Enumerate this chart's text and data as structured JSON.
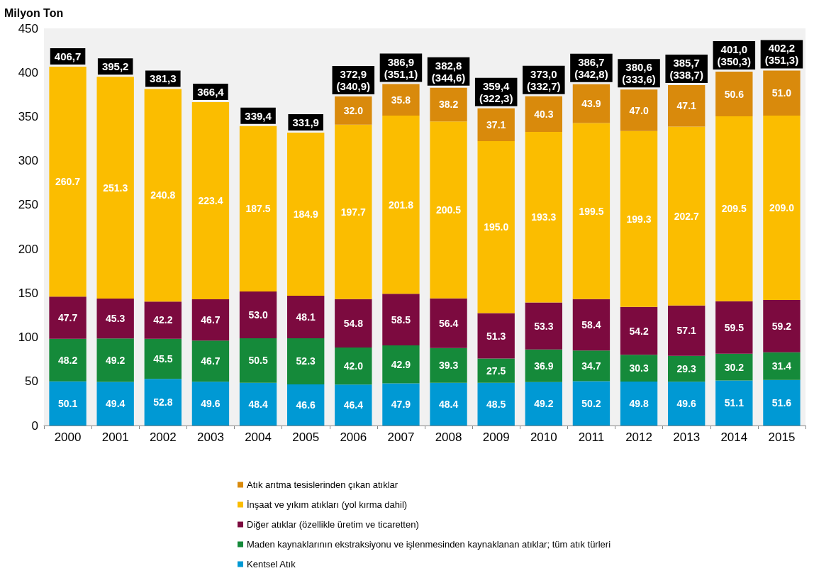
{
  "chart_data": {
    "type": "bar",
    "stacked": true,
    "ylabel": "Milyon Ton",
    "categories": [
      "2000",
      "2001",
      "2002",
      "2003",
      "2004",
      "2005",
      "2006",
      "2007",
      "2008",
      "2009",
      "2010",
      "2011",
      "2012",
      "2013",
      "2014",
      "2015"
    ],
    "series": [
      {
        "name": "Kentsel Atık",
        "color": "#0099d4",
        "values": [
          50.1,
          49.4,
          52.8,
          49.6,
          48.4,
          46.6,
          46.4,
          47.9,
          48.4,
          48.5,
          49.2,
          50.2,
          49.8,
          49.6,
          51.1,
          51.6
        ],
        "value_labels": [
          "50.1",
          "49.4",
          "52.8",
          "49.6",
          "48.4",
          "46.6",
          "46.4",
          "47.9",
          "48.4",
          "48.5",
          "49.2",
          "50.2",
          "49.8",
          "49.6",
          "51.1",
          "51.6"
        ]
      },
      {
        "name": "Maden kaynaklarının ekstraksiyonu ve işlenmesinden kaynaklanan atıklar; tüm atık türleri",
        "color": "#158a3a",
        "values": [
          48.2,
          49.2,
          45.5,
          46.7,
          50.5,
          52.3,
          42.0,
          42.9,
          39.3,
          27.5,
          36.9,
          34.7,
          30.3,
          29.3,
          30.2,
          31.4
        ],
        "value_labels": [
          "48.2",
          "49.2",
          "45.5",
          "46.7",
          "50.5",
          "52.3",
          "42.0",
          "42.9",
          "39.3",
          "27.5",
          "36.9",
          "34.7",
          "30.3",
          "29.3",
          "30.2",
          "31.4"
        ]
      },
      {
        "name": "Diğer atıklar (özellikle üretim ve ticaretten)",
        "color": "#7c0a3f",
        "values": [
          47.7,
          45.3,
          42.2,
          46.7,
          53.0,
          48.1,
          54.8,
          58.5,
          56.4,
          51.3,
          53.3,
          58.4,
          54.2,
          57.1,
          59.5,
          59.2
        ],
        "value_labels": [
          "47.7",
          "45.3",
          "42.2",
          "46.7",
          "53.0",
          "48.1",
          "54.8",
          "58.5",
          "56.4",
          "51.3",
          "53.3",
          "58.4",
          "54.2",
          "57.1",
          "59.5",
          "59.2"
        ]
      },
      {
        "name": "İnşaat ve yıkım atıkları (yol kırma dahil)",
        "color": "#fbbd00",
        "values": [
          260.7,
          251.3,
          240.8,
          223.4,
          187.5,
          184.9,
          197.7,
          201.8,
          200.5,
          195.0,
          193.3,
          199.5,
          199.3,
          202.7,
          209.5,
          209.0
        ],
        "value_labels": [
          "260.7",
          "251.3",
          "240.8",
          "223.4",
          "187.5",
          "184.9",
          "197.7",
          "201.8",
          "200.5",
          "195.0",
          "193.3",
          "199.5",
          "199.3",
          "202.7",
          "209.5",
          "209.0"
        ]
      },
      {
        "name": "Atık arıtma tesislerinden çıkan atıklar",
        "color": "#d98a0c",
        "values": [
          null,
          null,
          null,
          null,
          null,
          null,
          32.0,
          35.8,
          38.2,
          37.1,
          40.3,
          43.9,
          47.0,
          47.1,
          50.6,
          51.0
        ],
        "value_labels": [
          null,
          null,
          null,
          null,
          null,
          null,
          "32.0",
          "35.8",
          "38.2",
          "37.1",
          "40.3",
          "43.9",
          "47.0",
          "47.1",
          "50.6",
          "51.0"
        ]
      }
    ],
    "totals": [
      "406,7",
      "395,2",
      "381,3",
      "366,4",
      "339,4",
      "331,9",
      "372,9\n(340,9)",
      "386,9\n(351,1)",
      "382,8\n(344,6)",
      "359,4\n(322,3)",
      "373,0\n(332,7)",
      "386,7\n(342,8)",
      "380,6\n(333,6)",
      "385,7\n(338,7)",
      "401,0\n(350,3)",
      "402,2\n(351,3)"
    ],
    "ylim": [
      0,
      450
    ],
    "yticks": [
      0,
      50,
      100,
      150,
      200,
      250,
      300,
      350,
      400,
      450
    ],
    "grid": false,
    "legend": "bottom"
  }
}
